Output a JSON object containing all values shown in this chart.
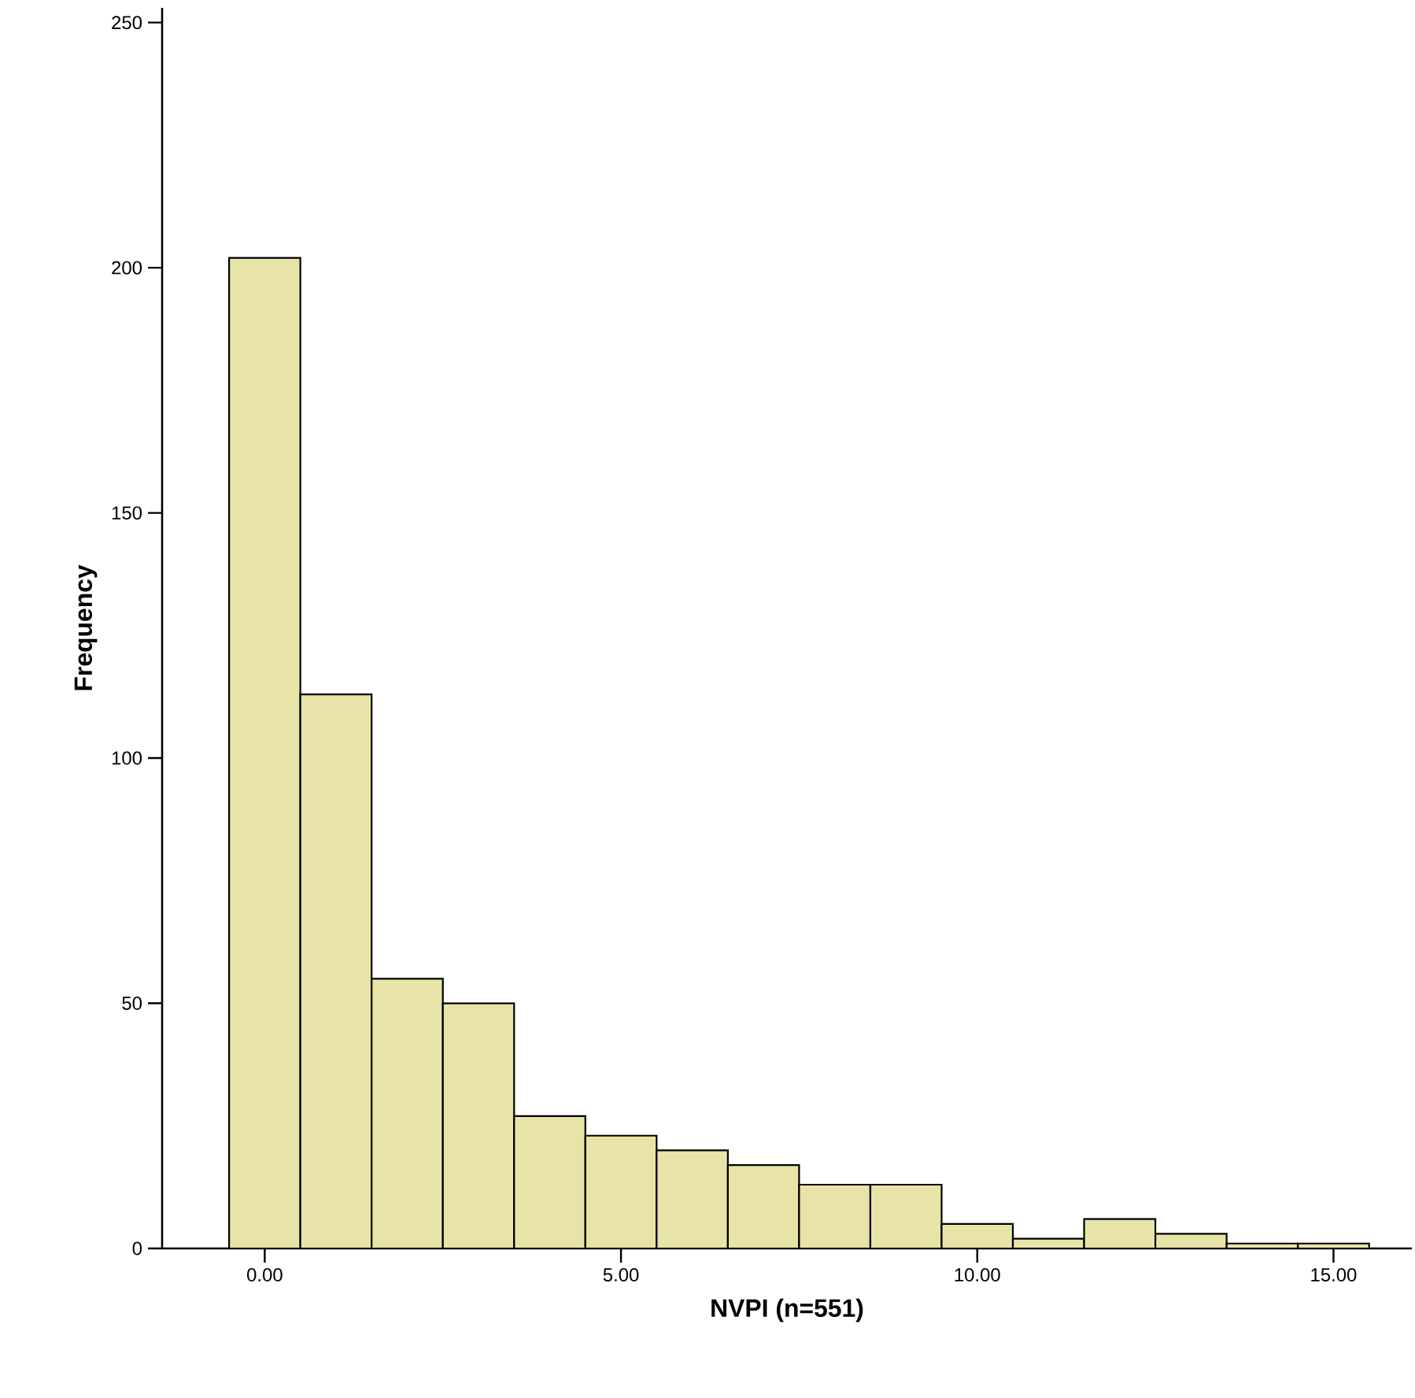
{
  "chart_data": {
    "type": "histogram",
    "xlabel": "NVPI (n=551)",
    "ylabel": "Frequency",
    "bins": [
      -0.5,
      0.5,
      1.5,
      2.5,
      3.5,
      4.5,
      5.5,
      6.5,
      7.5,
      8.5,
      9.5,
      10.5,
      11.5,
      12.5,
      13.5,
      14.5,
      15.5
    ],
    "values": [
      202,
      113,
      55,
      50,
      27,
      23,
      20,
      17,
      13,
      13,
      5,
      2,
      6,
      3,
      1,
      1
    ],
    "color": "#e8e4a8",
    "xlim": [
      -1.44,
      16.1
    ],
    "ylim": [
      0,
      253
    ],
    "xticks": [
      {
        "value": 0,
        "label": "0.00"
      },
      {
        "value": 5,
        "label": "5.00"
      },
      {
        "value": 10,
        "label": "10.00"
      },
      {
        "value": 15,
        "label": "15.00"
      }
    ],
    "yticks": [
      0,
      50,
      100,
      150,
      200,
      250
    ],
    "grid": false
  }
}
